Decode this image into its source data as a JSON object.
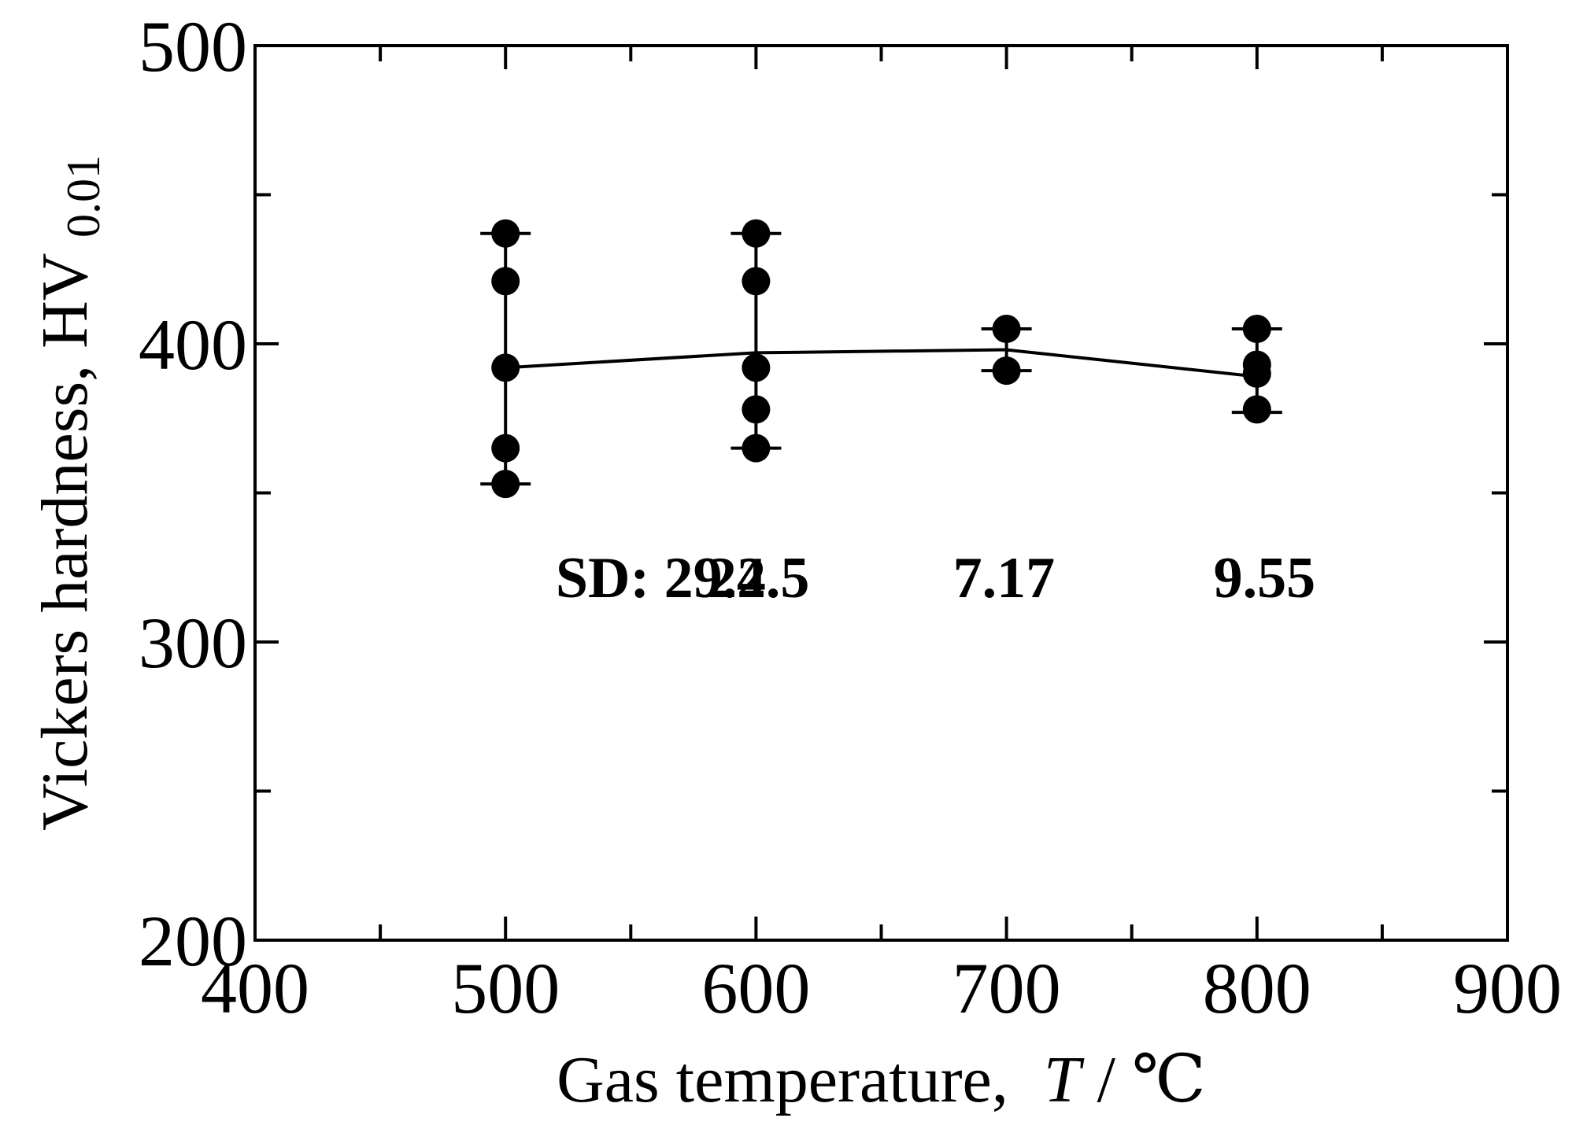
{
  "chart_data": {
    "type": "scatter",
    "title": "",
    "xlabel": {
      "prefix": "Gas temperature,",
      "symbol": "T",
      "unit": "/ ℃"
    },
    "ylabel": {
      "main": "Vickers hardness, HV",
      "subscript": "0.01"
    },
    "xlim": [
      400,
      900
    ],
    "ylim": [
      200,
      500
    ],
    "x_ticks": [
      400,
      500,
      600,
      700,
      800,
      900
    ],
    "y_ticks": [
      200,
      300,
      400,
      500
    ],
    "x_minor_ticks": [
      450,
      550,
      650,
      750,
      850
    ],
    "y_minor_ticks": [
      250,
      350,
      450
    ],
    "grid": false,
    "measurements": [
      {
        "x": 500,
        "values": [
          437,
          421,
          392,
          365,
          353
        ]
      },
      {
        "x": 600,
        "values": [
          437,
          421,
          392,
          378,
          365
        ]
      },
      {
        "x": 700,
        "values": [
          405,
          391
        ]
      },
      {
        "x": 800,
        "values": [
          405,
          393,
          390,
          378
        ]
      }
    ],
    "mean_line": {
      "x": [
        500,
        600,
        700,
        800
      ],
      "y": [
        392,
        397,
        398,
        389
      ]
    },
    "error_bars": [
      {
        "x": 500,
        "low": 353,
        "high": 437
      },
      {
        "x": 600,
        "low": 365,
        "high": 437
      },
      {
        "x": 700,
        "low": 391,
        "high": 405
      },
      {
        "x": 800,
        "low": 377,
        "high": 405
      }
    ],
    "annotations": [
      {
        "text": "SD: 29.2",
        "x": 562,
        "y": 315
      },
      {
        "text": "24.5",
        "x": 601,
        "y": 315
      },
      {
        "text": "7.17",
        "x": 699,
        "y": 315
      },
      {
        "text": "9.55",
        "x": 803,
        "y": 315
      }
    ],
    "colors": {
      "line": "#000000",
      "marker": "#000000",
      "background": "#ffffff"
    }
  }
}
